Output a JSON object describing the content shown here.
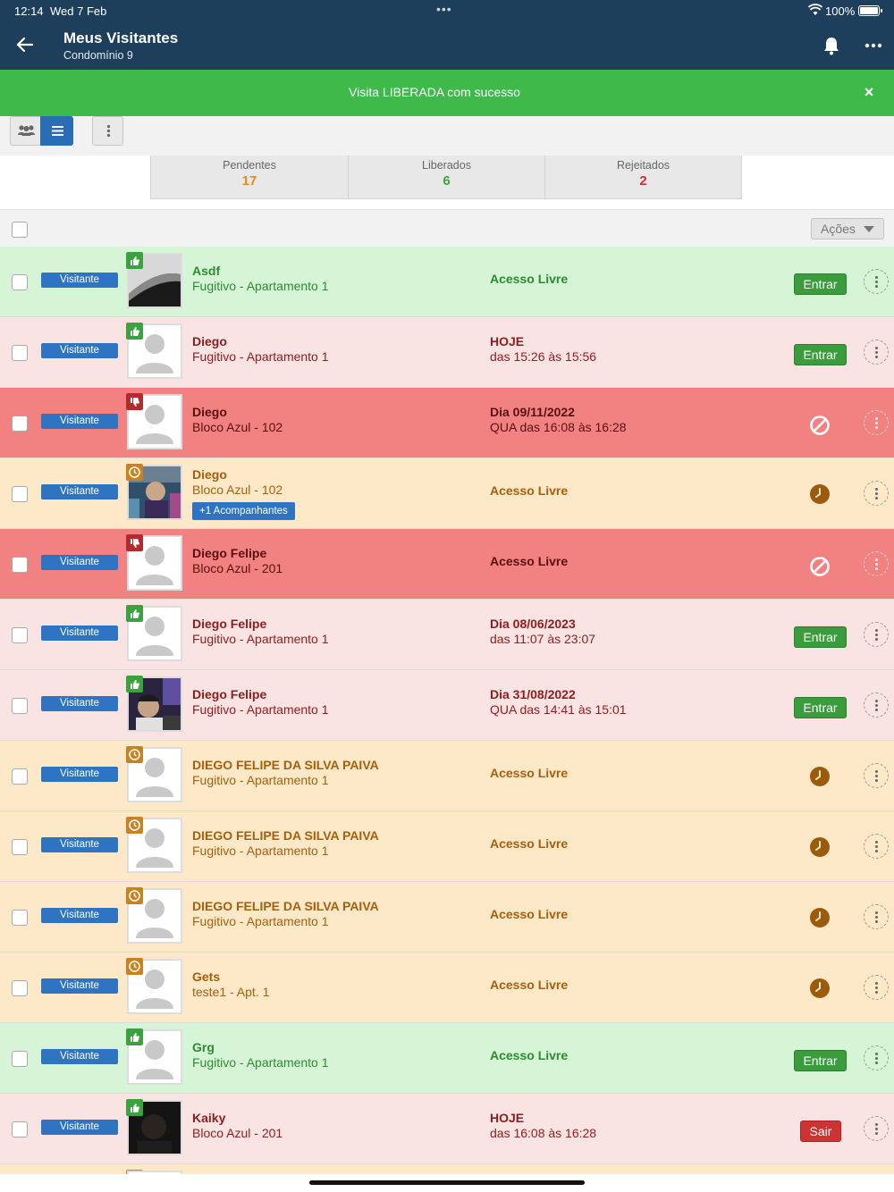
{
  "status_bar": {
    "time": "12:14",
    "date": "Wed 7 Feb",
    "battery": "100%"
  },
  "header": {
    "title": "Meus Visitantes",
    "subtitle": "Condomínio 9"
  },
  "banner": {
    "message": "Visita LIBERADA com sucesso",
    "close_icon": "×"
  },
  "stats": [
    {
      "label": "Pendentes",
      "count": "17",
      "color": "#e98a12"
    },
    {
      "label": "Liberados",
      "count": "6",
      "color": "#3aa33e"
    },
    {
      "label": "Rejeitados",
      "count": "2",
      "color": "#cc3333"
    }
  ],
  "actions": {
    "label": "Ações"
  },
  "colors": {
    "header": "#1e3f5c",
    "banner": "#3dba4a",
    "badge": "#2e74c3",
    "green_row": "#d5f5d6",
    "pink_row": "#f9e3e3",
    "red_row": "#f28282",
    "orange_row": "#fde9c7"
  },
  "visitors": [
    {
      "type": "Visitante",
      "status": "liberado",
      "photo": "dark",
      "name": "Asdf",
      "unit": "Fugitivo - Apartamento 1",
      "access_single": "Acesso Livre",
      "action": "Entrar",
      "row": "green"
    },
    {
      "type": "Visitante",
      "status": "liberado",
      "photo": "placeholder",
      "name": "Diego",
      "unit": "Fugitivo - Apartamento 1",
      "access_top": "HOJE",
      "access_bottom": "das 15:26 às 15:56",
      "action": "Entrar",
      "row": "pink"
    },
    {
      "type": "Visitante",
      "status": "rejeitado",
      "photo": "placeholder",
      "name": "Diego",
      "unit": "Bloco Azul - 102",
      "access_top": "Dia 09/11/2022",
      "access_bottom": "QUA das 16:08 às 16:28",
      "action": "blocked",
      "row": "red"
    },
    {
      "type": "Visitante",
      "status": "pendente",
      "photo": "person",
      "name": "Diego",
      "unit": "Bloco Azul - 102",
      "companions": "+1 Acompanhantes",
      "access_single": "Acesso Livre",
      "action": "clock",
      "row": "orange"
    },
    {
      "type": "Visitante",
      "status": "rejeitado",
      "photo": "placeholder",
      "name": "Diego Felipe",
      "unit": "Bloco Azul - 201",
      "access_single": "Acesso Livre",
      "action": "blocked",
      "row": "red"
    },
    {
      "type": "Visitante",
      "status": "liberado",
      "photo": "placeholder",
      "name": "Diego Felipe",
      "unit": "Fugitivo - Apartamento 1",
      "access_top": "Dia 08/06/2023",
      "access_bottom": "das 11:07 às 23:07",
      "action": "Entrar",
      "row": "pink"
    },
    {
      "type": "Visitante",
      "status": "liberado",
      "photo": "person2",
      "name": "Diego Felipe",
      "unit": "Fugitivo - Apartamento 1",
      "access_top": "Dia 31/08/2022",
      "access_bottom": "QUA das 14:41 às 15:01",
      "action": "Entrar",
      "row": "pink"
    },
    {
      "type": "Visitante",
      "status": "pendente",
      "photo": "placeholder",
      "name": "DIEGO FELIPE DA SILVA PAIVA",
      "unit": "Fugitivo - Apartamento 1",
      "access_single": "Acesso Livre",
      "action": "clock",
      "row": "orange"
    },
    {
      "type": "Visitante",
      "status": "pendente",
      "photo": "placeholder",
      "name": "DIEGO FELIPE DA SILVA PAIVA",
      "unit": "Fugitivo - Apartamento 1",
      "access_single": "Acesso Livre",
      "action": "clock",
      "row": "orange"
    },
    {
      "type": "Visitante",
      "status": "pendente",
      "photo": "placeholder",
      "name": "DIEGO FELIPE DA SILVA PAIVA",
      "unit": "Fugitivo - Apartamento 1",
      "access_single": "Acesso Livre",
      "action": "clock",
      "row": "orange"
    },
    {
      "type": "Visitante",
      "status": "pendente",
      "photo": "placeholder",
      "name": "Gets",
      "unit": "teste1 - Apt. 1",
      "access_single": "Acesso Livre",
      "action": "clock",
      "row": "orange"
    },
    {
      "type": "Visitante",
      "status": "liberado",
      "photo": "placeholder",
      "name": "Grg",
      "unit": "Fugitivo - Apartamento 1",
      "access_single": "Acesso Livre",
      "action": "Entrar",
      "row": "green"
    },
    {
      "type": "Visitante",
      "status": "liberado",
      "photo": "dark2",
      "name": "Kaiky",
      "unit": "Bloco Azul - 201",
      "access_top": "HOJE",
      "access_bottom": "das 16:08 às 16:28",
      "action": "Sair",
      "row": "pink"
    }
  ]
}
